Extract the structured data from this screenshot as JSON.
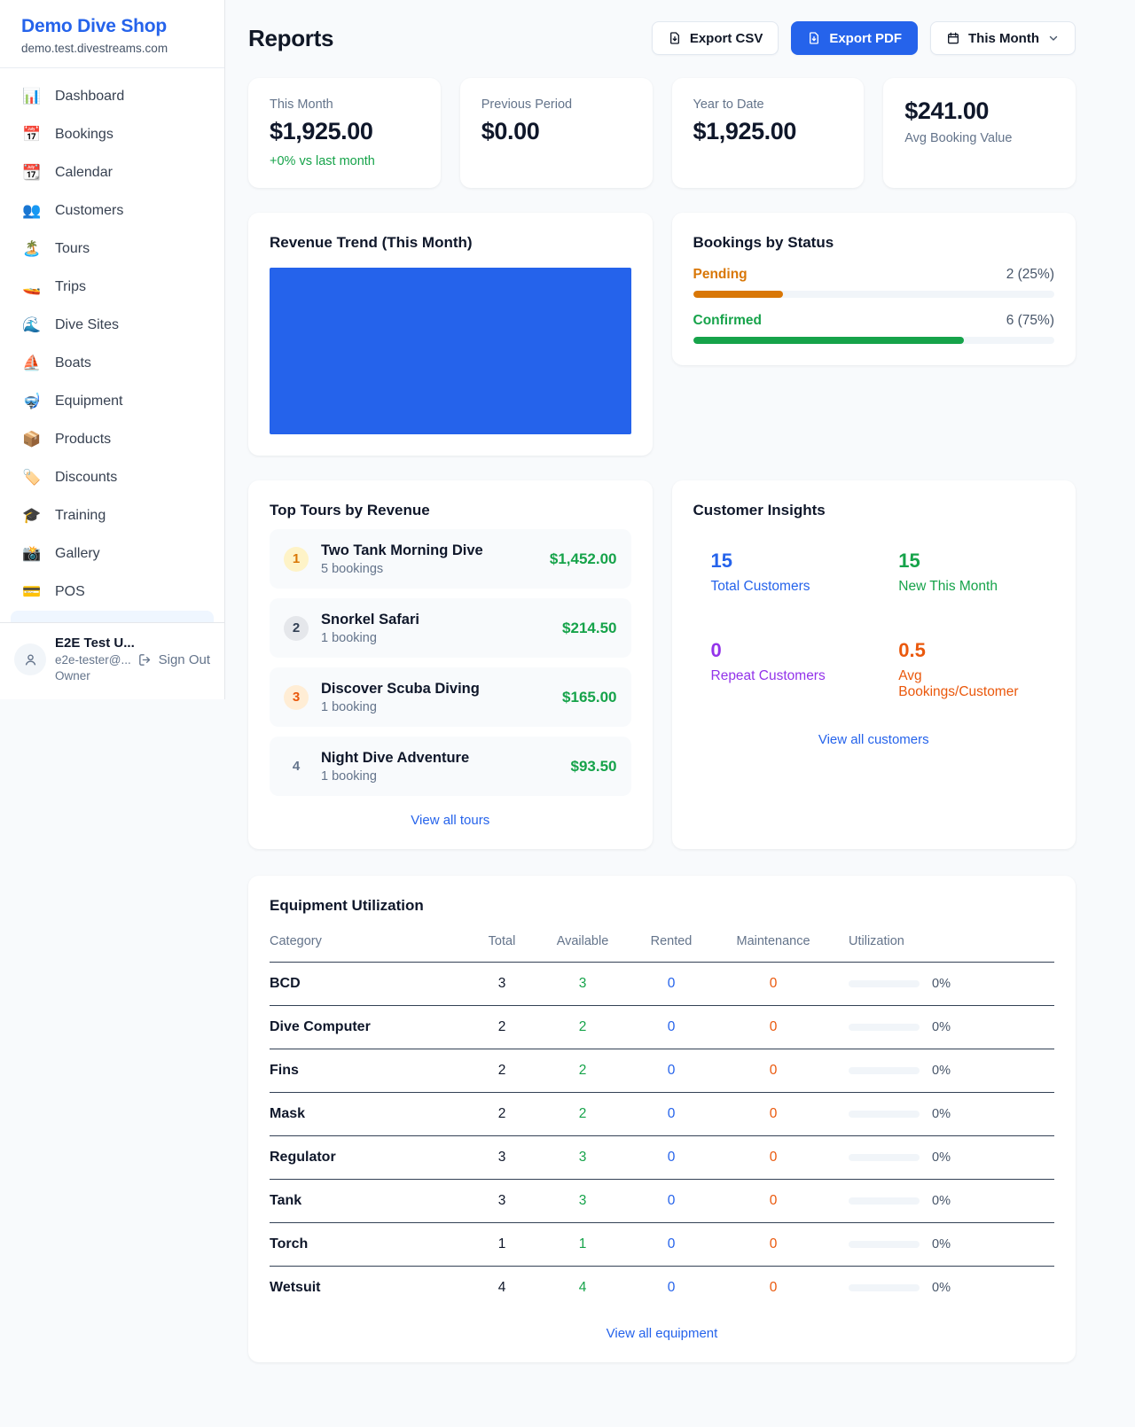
{
  "colors": {
    "primary": "#2563eb",
    "green": "#16a34a",
    "orange": "#d97706"
  },
  "sidebar": {
    "brand": "Demo Dive Shop",
    "domain": "demo.test.divestreams.com",
    "items": [
      {
        "icon": "📊",
        "label": "Dashboard"
      },
      {
        "icon": "📅",
        "label": "Bookings"
      },
      {
        "icon": "📆",
        "label": "Calendar"
      },
      {
        "icon": "👥",
        "label": "Customers"
      },
      {
        "icon": "🏝️",
        "label": "Tours"
      },
      {
        "icon": "🚤",
        "label": "Trips"
      },
      {
        "icon": "🌊",
        "label": "Dive Sites"
      },
      {
        "icon": "⛵",
        "label": "Boats"
      },
      {
        "icon": "🤿",
        "label": "Equipment"
      },
      {
        "icon": "📦",
        "label": "Products"
      },
      {
        "icon": "🏷️",
        "label": "Discounts"
      },
      {
        "icon": "🎓",
        "label": "Training"
      },
      {
        "icon": "📸",
        "label": "Gallery"
      },
      {
        "icon": "💳",
        "label": "POS"
      }
    ],
    "user": {
      "name": "E2E Test U...",
      "email": "e2e-tester@...",
      "role": "Owner",
      "sign_out": "Sign Out"
    }
  },
  "header": {
    "title": "Reports",
    "export_csv": "Export CSV",
    "export_pdf": "Export PDF",
    "period": "This Month"
  },
  "stats": {
    "this_month": {
      "label": "This Month",
      "value": "$1,925.00",
      "delta": "+0% vs last month"
    },
    "previous_period": {
      "label": "Previous Period",
      "value": "$0.00"
    },
    "year_to_date": {
      "label": "Year to Date",
      "value": "$1,925.00"
    },
    "avg_booking": {
      "value": "$241.00",
      "label": "Avg Booking Value"
    }
  },
  "revenue_trend": {
    "title": "Revenue Trend (This Month)"
  },
  "status": {
    "title": "Bookings by Status",
    "items": [
      {
        "label": "Pending",
        "count_text": "2 (25%)",
        "pct": 25,
        "color": "#d97706"
      },
      {
        "label": "Confirmed",
        "count_text": "6 (75%)",
        "pct": 75,
        "color": "#16a34a"
      }
    ]
  },
  "tours": {
    "title": "Top Tours by Revenue",
    "items": [
      {
        "rank": "1",
        "name": "Two Tank Morning Dive",
        "bookings": "5 bookings",
        "revenue": "$1,452.00",
        "badge_bg": "#fef3c7",
        "badge_color": "#d97706"
      },
      {
        "rank": "2",
        "name": "Snorkel Safari",
        "bookings": "1 booking",
        "revenue": "$214.50",
        "badge_bg": "#e5e7eb",
        "badge_color": "#334155"
      },
      {
        "rank": "3",
        "name": "Discover Scuba Diving",
        "bookings": "1 booking",
        "revenue": "$165.00",
        "badge_bg": "#ffedd5",
        "badge_color": "#ea580c"
      },
      {
        "rank": "4",
        "name": "Night Dive Adventure",
        "bookings": "1 booking",
        "revenue": "$93.50",
        "badge_bg": "transparent",
        "badge_color": "#64748b"
      }
    ],
    "view_all": "View all tours"
  },
  "insights": {
    "title": "Customer Insights",
    "tiles": [
      {
        "value": "15",
        "label": "Total Customers",
        "bg": "#eff6ff",
        "color": "#2563eb"
      },
      {
        "value": "15",
        "label": "New This Month",
        "bg": "#e9f9f0",
        "color": "#16a34a"
      },
      {
        "value": "0",
        "label": "Repeat Customers",
        "bg": "#f5edfd",
        "color": "#9333ea"
      },
      {
        "value": "0.5",
        "label": "Avg Bookings/Customer",
        "bg": "#feead6",
        "color": "#ea580c"
      }
    ],
    "view_all": "View all customers"
  },
  "equipment": {
    "title": "Equipment Utilization",
    "columns": [
      "Category",
      "Total",
      "Available",
      "Rented",
      "Maintenance",
      "Utilization"
    ],
    "rows": [
      {
        "category": "BCD",
        "total": "3",
        "available": "3",
        "rented": "0",
        "maintenance": "0",
        "utilization_pct": 0,
        "utilization_text": "0%"
      },
      {
        "category": "Dive Computer",
        "total": "2",
        "available": "2",
        "rented": "0",
        "maintenance": "0",
        "utilization_pct": 0,
        "utilization_text": "0%"
      },
      {
        "category": "Fins",
        "total": "2",
        "available": "2",
        "rented": "0",
        "maintenance": "0",
        "utilization_pct": 0,
        "utilization_text": "0%"
      },
      {
        "category": "Mask",
        "total": "2",
        "available": "2",
        "rented": "0",
        "maintenance": "0",
        "utilization_pct": 0,
        "utilization_text": "0%"
      },
      {
        "category": "Regulator",
        "total": "3",
        "available": "3",
        "rented": "0",
        "maintenance": "0",
        "utilization_pct": 0,
        "utilization_text": "0%"
      },
      {
        "category": "Tank",
        "total": "3",
        "available": "3",
        "rented": "0",
        "maintenance": "0",
        "utilization_pct": 0,
        "utilization_text": "0%"
      },
      {
        "category": "Torch",
        "total": "1",
        "available": "1",
        "rented": "0",
        "maintenance": "0",
        "utilization_pct": 0,
        "utilization_text": "0%"
      },
      {
        "category": "Wetsuit",
        "total": "4",
        "available": "4",
        "rented": "0",
        "maintenance": "0",
        "utilization_pct": 0,
        "utilization_text": "0%"
      }
    ],
    "view_all": "View all equipment"
  }
}
